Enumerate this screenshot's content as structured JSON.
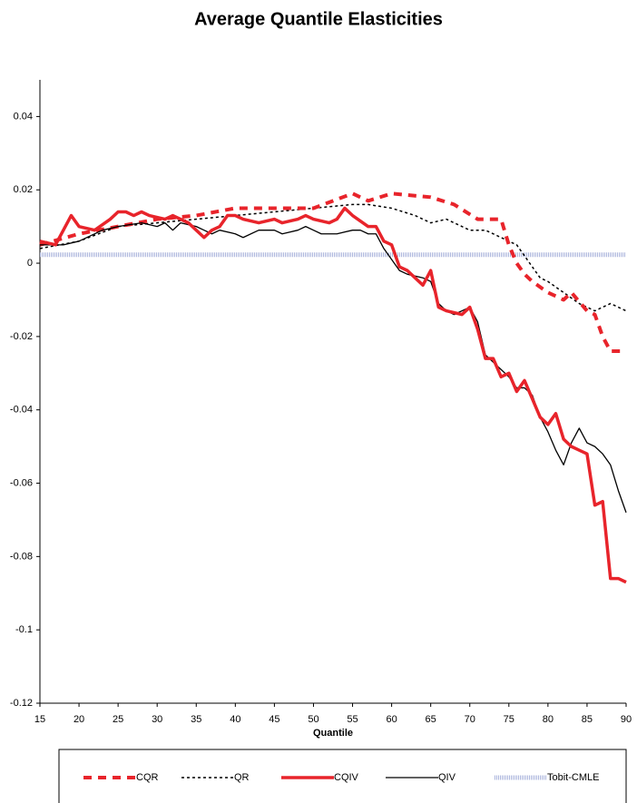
{
  "chart_data": {
    "type": "line",
    "title": "Average Quantile Elasticities",
    "x_label": "Quantile",
    "xlim": [
      15,
      90
    ],
    "xticks": [
      15,
      20,
      25,
      30,
      35,
      40,
      45,
      50,
      55,
      60,
      65,
      70,
      75,
      80,
      85,
      90
    ],
    "ylim": [
      -0.12,
      0.05
    ],
    "yticks": [
      -0.12,
      -0.1,
      -0.08,
      -0.06,
      -0.04,
      -0.02,
      0,
      0.02,
      0.04
    ],
    "legend": "bottom",
    "series": [
      {
        "name": "CQR",
        "color": "#e8242b",
        "style": "dashed",
        "x": [
          15,
          20,
          25,
          30,
          35,
          40,
          45,
          50,
          55,
          57,
          60,
          65,
          68,
          71,
          74,
          75,
          76,
          77,
          78,
          80,
          82,
          83,
          85,
          86,
          87,
          88,
          90
        ],
        "values": [
          0.005,
          0.008,
          0.01,
          0.012,
          0.013,
          0.015,
          0.015,
          0.015,
          0.019,
          0.017,
          0.019,
          0.018,
          0.016,
          0.012,
          0.012,
          0.005,
          0,
          -0.003,
          -0.005,
          -0.008,
          -0.01,
          -0.008,
          -0.013,
          -0.014,
          -0.02,
          -0.024,
          -0.024
        ]
      },
      {
        "name": "QR",
        "color": "#000000",
        "style": "dotted",
        "x": [
          15,
          20,
          25,
          30,
          35,
          40,
          45,
          50,
          55,
          57,
          60,
          63,
          65,
          67,
          70,
          72,
          74,
          76,
          77,
          79,
          80,
          82,
          84,
          86,
          88,
          89,
          90
        ],
        "values": [
          0.004,
          0.006,
          0.01,
          0.011,
          0.012,
          0.013,
          0.014,
          0.015,
          0.016,
          0.016,
          0.015,
          0.013,
          0.011,
          0.012,
          0.009,
          0.009,
          0.007,
          0.005,
          0.002,
          -0.004,
          -0.005,
          -0.008,
          -0.011,
          -0.013,
          -0.011,
          -0.012,
          -0.013
        ]
      },
      {
        "name": "CQIV",
        "color": "#e8242b",
        "style": "thick",
        "x": [
          15,
          17,
          18,
          19,
          20,
          22,
          24,
          25,
          26,
          27,
          28,
          29,
          31,
          32,
          34,
          35,
          36,
          37,
          38,
          39,
          40,
          41,
          43,
          45,
          46,
          48,
          49,
          50,
          52,
          53,
          54,
          55,
          57,
          58,
          59,
          60,
          61,
          62,
          64,
          65,
          66,
          67,
          69,
          70,
          71,
          72,
          73,
          74,
          75,
          76,
          77,
          78,
          79,
          80,
          81,
          82,
          83,
          84,
          85,
          86,
          87,
          88,
          89,
          90
        ],
        "values": [
          0.006,
          0.005,
          0.009,
          0.013,
          0.01,
          0.009,
          0.012,
          0.014,
          0.014,
          0.013,
          0.014,
          0.013,
          0.012,
          0.013,
          0.011,
          0.009,
          0.007,
          0.009,
          0.01,
          0.013,
          0.013,
          0.012,
          0.011,
          0.012,
          0.011,
          0.012,
          0.013,
          0.012,
          0.011,
          0.012,
          0.015,
          0.013,
          0.01,
          0.01,
          0.006,
          0.005,
          -0.001,
          -0.002,
          -0.006,
          -0.002,
          -0.012,
          -0.013,
          -0.014,
          -0.012,
          -0.018,
          -0.026,
          -0.026,
          -0.031,
          -0.03,
          -0.035,
          -0.032,
          -0.037,
          -0.042,
          -0.044,
          -0.041,
          -0.048,
          -0.05,
          -0.051,
          -0.052,
          -0.066,
          -0.065,
          -0.086,
          -0.086,
          -0.087
        ]
      },
      {
        "name": "QIV",
        "color": "#000000",
        "style": "thin",
        "x": [
          15,
          18,
          20,
          23,
          25,
          28,
          30,
          31,
          32,
          33,
          35,
          36,
          37,
          38,
          40,
          41,
          43,
          45,
          46,
          48,
          49,
          50,
          51,
          53,
          55,
          56,
          57,
          58,
          59,
          60,
          61,
          62,
          64,
          65,
          66,
          67,
          68,
          69,
          70,
          71,
          72,
          73,
          74,
          75,
          76,
          77,
          78,
          79,
          80,
          81,
          82,
          83,
          84,
          85,
          86,
          87,
          88,
          89,
          90
        ],
        "values": [
          0.005,
          0.005,
          0.006,
          0.009,
          0.01,
          0.011,
          0.01,
          0.011,
          0.009,
          0.011,
          0.01,
          0.009,
          0.008,
          0.009,
          0.008,
          0.007,
          0.009,
          0.009,
          0.008,
          0.009,
          0.01,
          0.009,
          0.008,
          0.008,
          0.009,
          0.009,
          0.008,
          0.008,
          0.004,
          0.001,
          -0.002,
          -0.003,
          -0.004,
          -0.005,
          -0.011,
          -0.013,
          -0.014,
          -0.013,
          -0.012,
          -0.016,
          -0.025,
          -0.027,
          -0.029,
          -0.031,
          -0.034,
          -0.034,
          -0.036,
          -0.042,
          -0.046,
          -0.051,
          -0.055,
          -0.049,
          -0.045,
          -0.049,
          -0.05,
          -0.052,
          -0.055,
          -0.062,
          -0.068
        ]
      },
      {
        "name": "Tobit-CMLE",
        "color": "#aab4dc",
        "style": "band",
        "x": [
          15,
          90
        ],
        "values": [
          0.0023,
          0.0023
        ]
      }
    ]
  }
}
